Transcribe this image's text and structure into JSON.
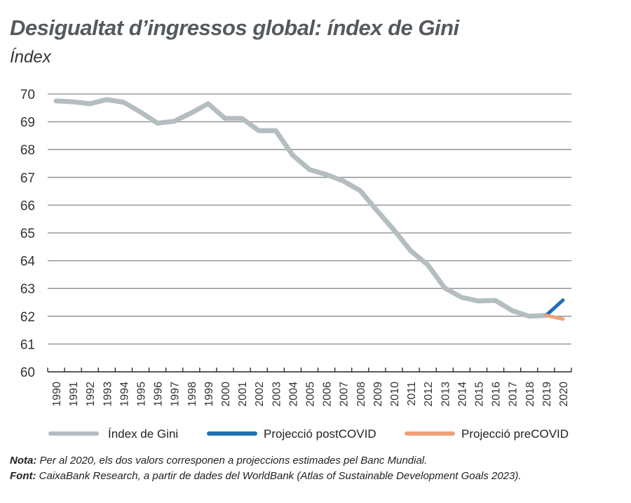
{
  "chart_data": {
    "type": "line",
    "title": "Desigualtat d’ingressos global: índex de Gini",
    "subtitle": "Índex",
    "xlabel": "",
    "ylabel": "",
    "ylim": [
      60,
      70
    ],
    "yticks": [
      60,
      61,
      62,
      63,
      64,
      65,
      66,
      67,
      68,
      69,
      70
    ],
    "grid": true,
    "legend_position": "bottom",
    "categories": [
      "1990",
      "1991",
      "1992",
      "1993",
      "1994",
      "1995",
      "1996",
      "1997",
      "1998",
      "1999",
      "2000",
      "2001",
      "2002",
      "2003",
      "2004",
      "2005",
      "2006",
      "2007",
      "2008",
      "2009",
      "2010",
      "2011",
      "2012",
      "2013",
      "2014",
      "2015",
      "2016",
      "2017",
      "2018",
      "2019",
      "2020"
    ],
    "series": [
      {
        "name": "Índex de Gini",
        "color": "#b4bec1",
        "x": [
          "1990",
          "1991",
          "1992",
          "1993",
          "1994",
          "1995",
          "1996",
          "1997",
          "1998",
          "1999",
          "2000",
          "2001",
          "2002",
          "2003",
          "2004",
          "2005",
          "2006",
          "2007",
          "2008",
          "2009",
          "2010",
          "2011",
          "2012",
          "2013",
          "2014",
          "2015",
          "2016",
          "2017",
          "2018",
          "2019"
        ],
        "values": [
          69.75,
          69.72,
          69.65,
          69.8,
          69.7,
          69.35,
          68.95,
          69.02,
          69.32,
          69.65,
          69.12,
          69.12,
          68.68,
          68.68,
          67.8,
          67.28,
          67.1,
          66.87,
          66.52,
          65.8,
          65.1,
          64.35,
          63.85,
          63.02,
          62.68,
          62.55,
          62.57,
          62.2,
          62.0,
          62.03
        ]
      },
      {
        "name": "Projecció postCOVID",
        "color": "#1f6fb5",
        "x": [
          "2019",
          "2020"
        ],
        "values": [
          62.03,
          62.58
        ]
      },
      {
        "name": "Projecció preCOVID",
        "color": "#f2a07b",
        "x": [
          "2019",
          "2020"
        ],
        "values": [
          62.03,
          61.9
        ]
      }
    ]
  },
  "notes": {
    "nota_label": "Nota:",
    "nota_text": " Per al 2020, els dos valors corresponen a projeccions estimades pel Banc Mundial.",
    "font_label": "Font:",
    "font_text": " CaixaBank Research, a partir de dades del WorldBank (Atlas of Sustainable Development Goals 2023)."
  }
}
